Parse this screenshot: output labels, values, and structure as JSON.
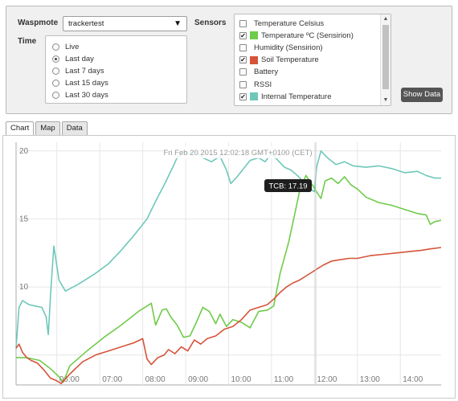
{
  "controls": {
    "waspmote_label": "Waspmote",
    "waspmote_value": "trackertest",
    "time_label": "Time",
    "time_options": [
      "Live",
      "Last day",
      "Last 7 days",
      "Last 15 days",
      "Last 30 days"
    ],
    "time_selected": "Last day",
    "sensors_label": "Sensors",
    "show_button": "Show Data"
  },
  "sensors": [
    {
      "label": "Temperature Celsius",
      "checked": false,
      "color": ""
    },
    {
      "label": "Temperature ºC (Sensirion)",
      "checked": true,
      "color": "#6fcb4a"
    },
    {
      "label": "Humidity (Sensirion)",
      "checked": false,
      "color": ""
    },
    {
      "label": "Soil Temperature",
      "checked": true,
      "color": "#d5543a"
    },
    {
      "label": "Battery",
      "checked": false,
      "color": ""
    },
    {
      "label": "RSSI",
      "checked": false,
      "color": ""
    },
    {
      "label": "Internal Temperature",
      "checked": true,
      "color": "#6ec8b9"
    }
  ],
  "tabs": [
    {
      "label": "Chart",
      "active": true
    },
    {
      "label": "Map",
      "active": false
    },
    {
      "label": "Data",
      "active": false
    }
  ],
  "chart_data": {
    "type": "line",
    "hover_timestamp": "Fri Feb 20 2015 12:02:18 GMT+0100 (CET)",
    "tooltip": "TCB: 17.19",
    "y_ticks": [
      "20",
      "15",
      "10"
    ],
    "x_ticks": [
      "06:00",
      "07:00",
      "08:00",
      "09:00",
      "10:00",
      "11:00",
      "12:00",
      "13:00",
      "14:00"
    ],
    "ylim": [
      2.8,
      20.4
    ],
    "xlim": [
      5.05,
      14.95
    ],
    "series": [
      {
        "color": "#6ec8b9",
        "x": [
          5.05,
          5.12,
          5.2,
          5.35,
          5.5,
          5.65,
          5.75,
          5.8,
          5.86,
          5.93,
          6.05,
          6.2,
          6.5,
          6.9,
          7.2,
          7.5,
          7.8,
          8.1,
          8.3,
          8.5,
          8.7,
          8.8,
          8.95,
          9.05,
          9.2,
          9.4,
          9.6,
          9.8,
          9.95,
          10.05,
          10.2,
          10.35,
          10.5,
          10.7,
          10.85,
          11.0,
          11.15,
          11.3,
          11.45,
          11.6,
          11.75,
          11.85,
          12.0,
          12.05,
          12.15,
          12.3,
          12.5,
          12.7,
          12.9,
          13.2,
          13.5,
          13.8,
          14.1,
          14.4,
          14.6,
          14.8,
          14.95
        ],
        "y": [
          5.5,
          8.5,
          9.0,
          8.7,
          8.6,
          8.5,
          7.8,
          6.5,
          9.8,
          13.0,
          10.5,
          9.7,
          10.2,
          11.0,
          11.7,
          12.7,
          13.8,
          15.0,
          16.3,
          17.5,
          18.8,
          19.5,
          20.0,
          19.8,
          20.0,
          19.5,
          19.2,
          19.6,
          18.6,
          17.6,
          18.1,
          18.7,
          19.3,
          19.5,
          19.2,
          19.8,
          19.3,
          18.8,
          18.6,
          18.2,
          17.7,
          17.3,
          17.0,
          18.8,
          20.0,
          19.5,
          19.0,
          19.2,
          18.9,
          18.8,
          18.9,
          18.7,
          18.4,
          18.5,
          18.2,
          18.0,
          18.0
        ]
      },
      {
        "color": "#6fcb4a",
        "x": [
          5.05,
          5.3,
          5.6,
          5.85,
          6.05,
          6.15,
          6.3,
          6.7,
          7.1,
          7.5,
          7.9,
          8.2,
          8.3,
          8.45,
          8.55,
          8.65,
          8.8,
          8.95,
          9.1,
          9.25,
          9.4,
          9.55,
          9.7,
          9.8,
          9.95,
          10.1,
          10.3,
          10.5,
          10.7,
          10.9,
          11.05,
          11.2,
          11.4,
          11.55,
          11.65,
          11.8,
          11.95,
          12.05,
          12.15,
          12.25,
          12.4,
          12.55,
          12.7,
          12.85,
          13.0,
          13.2,
          13.5,
          13.8,
          14.1,
          14.4,
          14.6,
          14.7,
          14.8,
          14.95
        ],
        "y": [
          4.8,
          4.8,
          4.6,
          4.0,
          3.4,
          3.0,
          4.2,
          5.3,
          6.3,
          7.2,
          8.2,
          8.8,
          7.2,
          8.3,
          8.4,
          7.8,
          7.2,
          6.3,
          6.4,
          7.4,
          8.5,
          8.2,
          7.3,
          8.0,
          7.1,
          7.6,
          7.4,
          7.0,
          8.2,
          8.3,
          8.6,
          11.0,
          13.3,
          15.5,
          17.0,
          18.2,
          17.5,
          17.0,
          16.5,
          17.8,
          18.0,
          17.6,
          18.1,
          17.5,
          17.2,
          16.6,
          16.2,
          16.0,
          15.7,
          15.4,
          15.3,
          14.6,
          14.8,
          14.9
        ]
      },
      {
        "color": "#d5543a",
        "x": [
          5.05,
          5.12,
          5.2,
          5.3,
          5.4,
          5.55,
          5.7,
          5.85,
          6.0,
          6.1,
          6.3,
          6.6,
          6.9,
          7.2,
          7.5,
          7.8,
          8.0,
          8.1,
          8.2,
          8.35,
          8.5,
          8.6,
          8.75,
          8.9,
          9.05,
          9.2,
          9.35,
          9.5,
          9.7,
          9.9,
          10.1,
          10.3,
          10.5,
          10.7,
          10.9,
          11.05,
          11.2,
          11.35,
          11.5,
          11.65,
          11.8,
          11.95,
          12.05,
          12.2,
          12.4,
          12.6,
          12.8,
          13.0,
          13.3,
          13.6,
          13.9,
          14.2,
          14.5,
          14.7,
          14.95
        ],
        "y": [
          5.5,
          5.8,
          5.2,
          4.8,
          4.6,
          4.4,
          3.9,
          3.3,
          3.1,
          2.9,
          3.6,
          4.5,
          5.0,
          5.3,
          5.6,
          5.9,
          6.2,
          4.7,
          4.3,
          4.8,
          5.0,
          5.4,
          5.1,
          5.6,
          5.3,
          6.1,
          5.8,
          6.2,
          6.4,
          6.9,
          7.1,
          7.6,
          8.3,
          8.5,
          8.7,
          9.1,
          9.6,
          10.0,
          10.3,
          10.5,
          10.8,
          11.1,
          11.3,
          11.6,
          11.9,
          12.0,
          12.1,
          12.1,
          12.3,
          12.4,
          12.5,
          12.6,
          12.7,
          12.8,
          12.9
        ]
      }
    ]
  }
}
